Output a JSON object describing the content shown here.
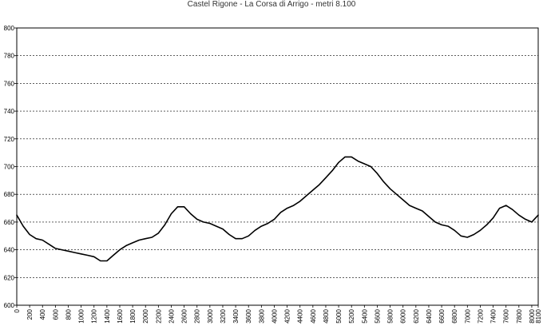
{
  "chart_data": {
    "type": "line",
    "title": "Castel Rigone - La Corsa di Arrigo - metri 8.100",
    "xlabel": "",
    "ylabel": "",
    "xlim": [
      0,
      8100
    ],
    "ylim": [
      600,
      800
    ],
    "grid": true,
    "y_ticks": [
      600,
      620,
      640,
      660,
      680,
      700,
      720,
      740,
      760,
      780,
      800
    ],
    "x_ticks": [
      0,
      200,
      400,
      600,
      800,
      1000,
      1200,
      1400,
      1600,
      1800,
      2000,
      2200,
      2400,
      2600,
      2800,
      3000,
      3200,
      3400,
      3600,
      3800,
      4000,
      4200,
      4400,
      4600,
      4800,
      5000,
      5200,
      5400,
      5600,
      5800,
      6000,
      6200,
      6400,
      6600,
      6800,
      7000,
      7200,
      7400,
      7600,
      7800,
      8000,
      8100
    ],
    "x_ticks_display": [
      "0",
      "200",
      "400",
      "600",
      "800",
      "1000",
      "1200",
      "1400",
      "1600",
      "1800",
      "2000",
      "2200",
      "2400",
      "2600",
      "2800",
      "3000",
      "3200",
      "3400",
      "3600",
      "3800",
      "4000",
      "4200",
      "4400",
      "4600",
      "4800",
      "5000",
      "5200",
      "5400",
      "5600",
      "5800",
      "6000",
      "6200",
      "6400",
      "6600",
      "6800",
      "7000",
      "7200",
      "7400",
      "7600",
      "7800",
      "8000",
      "8100"
    ],
    "series": [
      {
        "color": "#000000",
        "x": [
          0,
          100,
          200,
          300,
          400,
          500,
          600,
          700,
          800,
          900,
          1000,
          1100,
          1200,
          1300,
          1400,
          1500,
          1600,
          1700,
          1800,
          1900,
          2000,
          2100,
          2200,
          2300,
          2400,
          2500,
          2600,
          2700,
          2800,
          2900,
          3000,
          3100,
          3200,
          3300,
          3400,
          3500,
          3600,
          3700,
          3800,
          3900,
          4000,
          4100,
          4200,
          4300,
          4400,
          4500,
          4600,
          4700,
          4800,
          4900,
          5000,
          5100,
          5200,
          5300,
          5400,
          5500,
          5600,
          5700,
          5800,
          5900,
          6000,
          6100,
          6200,
          6300,
          6400,
          6500,
          6600,
          6700,
          6800,
          6900,
          7000,
          7100,
          7200,
          7300,
          7400,
          7500,
          7600,
          7700,
          7800,
          7900,
          8000,
          8100
        ],
        "y": [
          665,
          657,
          651,
          648,
          647,
          644,
          641,
          640,
          639,
          638,
          637,
          636,
          635,
          632,
          632,
          636,
          640,
          643,
          645,
          647,
          648,
          649,
          652,
          658,
          666,
          671,
          671,
          666,
          662,
          660,
          659,
          657,
          655,
          651,
          648,
          648,
          650,
          654,
          657,
          659,
          662,
          667,
          670,
          672,
          675,
          679,
          683,
          687,
          692,
          697,
          703,
          707,
          707,
          704,
          702,
          700,
          695,
          689,
          684,
          680,
          676,
          672,
          670,
          668,
          664,
          660,
          658,
          657,
          654,
          650,
          649,
          651,
          654,
          658,
          663,
          670,
          672,
          669,
          665,
          662,
          660,
          665
        ]
      }
    ]
  }
}
